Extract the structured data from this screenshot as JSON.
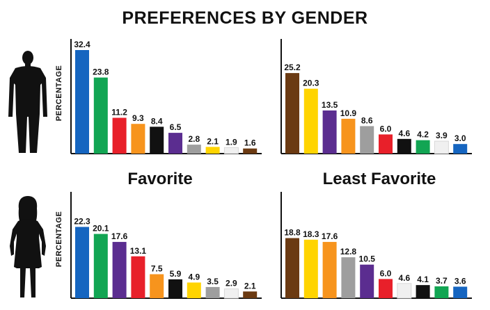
{
  "title": "PREFERENCES BY GENDER",
  "panel_labels": {
    "favorite": "Favorite",
    "least_favorite": "Least Favorite"
  },
  "ylabel": "PERCENTAGE",
  "colors": {
    "blue": "#1565c0",
    "green": "#12a553",
    "red": "#e8202a",
    "orange": "#f7941d",
    "black": "#111111",
    "purple": "#5b2d90",
    "gray": "#9e9e9e",
    "yellow": "#ffd400",
    "white": "#f0f0f0",
    "brown": "#6b3a12"
  },
  "chart_data": [
    {
      "type": "bar",
      "id": "male-favorite",
      "ylabel": "PERCENTAGE",
      "colors": [
        "blue",
        "green",
        "red",
        "orange",
        "black",
        "purple",
        "gray",
        "yellow",
        "white",
        "brown"
      ],
      "values": [
        32.4,
        23.8,
        11.2,
        9.3,
        8.4,
        6.5,
        2.8,
        2.1,
        1.9,
        1.6
      ],
      "labels": [
        "32.4",
        "23.8",
        "11.2",
        "9.3",
        "8.4",
        "6.5",
        "2.8",
        "2.1",
        "1.9",
        "1.6"
      ]
    },
    {
      "type": "bar",
      "id": "male-least-favorite",
      "ylabel": "",
      "colors": [
        "brown",
        "yellow",
        "purple",
        "orange",
        "gray",
        "red",
        "black",
        "green",
        "white",
        "blue"
      ],
      "values": [
        25.2,
        20.3,
        13.5,
        10.9,
        8.6,
        6.0,
        4.6,
        4.2,
        3.9,
        3.0
      ],
      "labels": [
        "25.2",
        "20.3",
        "13.5",
        "10.9",
        "8.6",
        "6.0",
        "4.6",
        "4.2",
        "3.9",
        "3.0"
      ]
    },
    {
      "type": "bar",
      "id": "female-favorite",
      "ylabel": "PERCENTAGE",
      "colors": [
        "blue",
        "green",
        "purple",
        "red",
        "orange",
        "black",
        "yellow",
        "gray",
        "white",
        "brown"
      ],
      "values": [
        22.3,
        20.1,
        17.6,
        13.1,
        7.5,
        5.9,
        4.9,
        3.5,
        2.9,
        2.1
      ],
      "labels": [
        "22.3",
        "20.1",
        "17.6",
        "13.1",
        "7.5",
        "5.9",
        "4.9",
        "3.5",
        "2.9",
        "2.1"
      ]
    },
    {
      "type": "bar",
      "id": "female-least-favorite",
      "ylabel": "",
      "colors": [
        "brown",
        "yellow",
        "orange",
        "gray",
        "purple",
        "red",
        "white",
        "black",
        "green",
        "blue"
      ],
      "values": [
        18.8,
        18.3,
        17.6,
        12.8,
        10.5,
        6.0,
        4.6,
        4.1,
        3.7,
        3.6
      ],
      "labels": [
        "18.8",
        "18.3",
        "17.6",
        "12.8",
        "10.5",
        "6.0",
        "4.6",
        "4.1",
        "3.7",
        "3.6"
      ]
    }
  ]
}
